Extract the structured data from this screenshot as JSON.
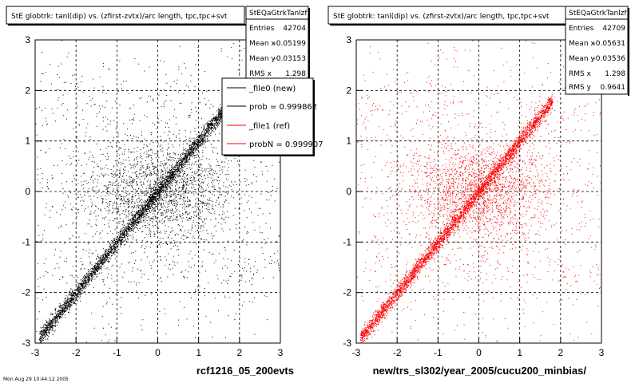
{
  "footer_text": "Mon Aug 29 10:44:12 2005",
  "chart_data": [
    {
      "type": "scatter",
      "title": "StE globtrk: tanl(dip) vs. (zfirst-zvtx)/arc length, tpc,tpc+svt",
      "xlabel": "rcf1216_05_200evts",
      "ylabel": "",
      "xlim": [
        -3,
        3
      ],
      "ylim": [
        -3,
        3
      ],
      "x_ticks": [
        "-3",
        "-2",
        "-1",
        "0",
        "1",
        "2",
        "3"
      ],
      "y_ticks": [
        "-3",
        "-2",
        "-1",
        "0",
        "1",
        "2",
        "3"
      ],
      "grid": true,
      "color": "#000000",
      "stats": {
        "name": "StEQaGtrkTanlzf",
        "rows": [
          {
            "label": "Entries",
            "value": "42704"
          },
          {
            "label": "Mean x",
            "value": "-0.05199"
          },
          {
            "label": "Mean y",
            "value": "-0.03153"
          },
          {
            "label": "RMS x",
            "value": "1.298"
          }
        ]
      },
      "legend": [
        {
          "label": "_file0 (new)",
          "color": "#000000"
        },
        {
          "label": "prob = 0.999862",
          "color": "#000000"
        },
        {
          "label": "_file1 (ref)",
          "color": "#ff0000"
        },
        {
          "label": "probN = 0.999907",
          "color": "#ff0000"
        }
      ]
    },
    {
      "type": "scatter",
      "title": "StE globtrk: tanl(dip) vs. (zfirst-zvtx)/arc length, tpc,tpc+svt",
      "xlabel": "new/trs_sl302/year_2005/cucu200_minbias/",
      "ylabel": "",
      "xlim": [
        -3,
        3
      ],
      "ylim": [
        -3,
        3
      ],
      "x_ticks": [
        "-3",
        "-2",
        "-1",
        "0",
        "1",
        "2",
        "3"
      ],
      "y_ticks": [
        "-3",
        "-2",
        "-1",
        "0",
        "1",
        "2",
        "3"
      ],
      "grid": true,
      "color": "#ff0000",
      "stats": {
        "name": "StEQaGtrkTanlzf",
        "rows": [
          {
            "label": "Entries",
            "value": "42709"
          },
          {
            "label": "Mean x",
            "value": "-0.05631"
          },
          {
            "label": "Mean y",
            "value": "-0.03536"
          },
          {
            "label": "RMS x",
            "value": "1.298"
          },
          {
            "label": "RMS y",
            "value": "0.9641"
          }
        ]
      }
    }
  ]
}
